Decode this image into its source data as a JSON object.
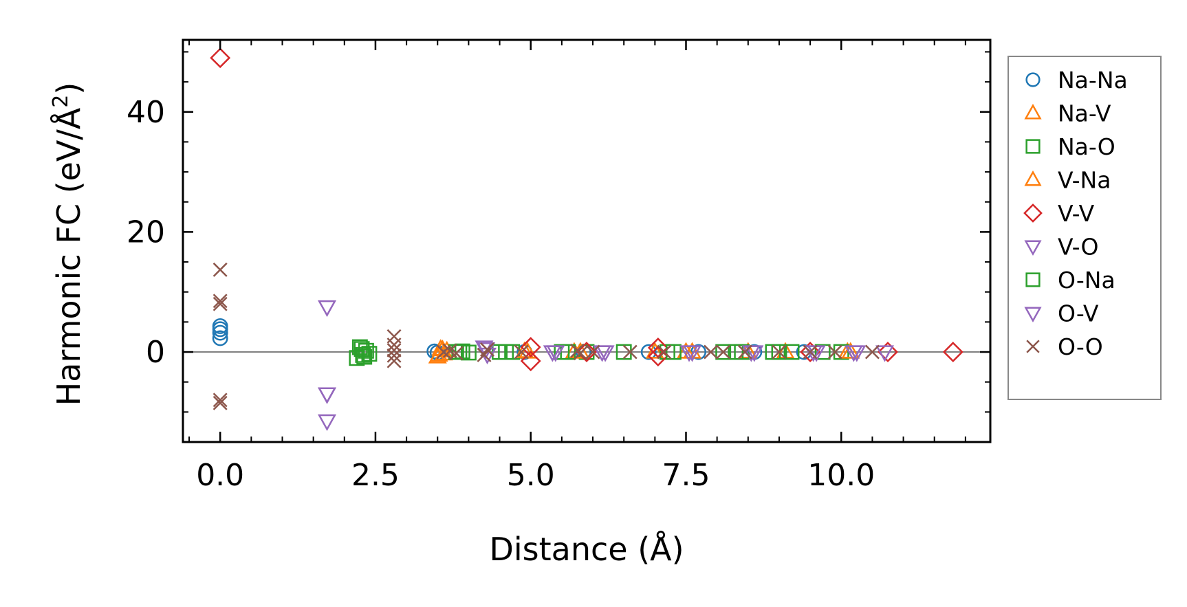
{
  "chart_data": {
    "type": "scatter",
    "title": "",
    "xlabel": "Distance (Å)",
    "ylabel_prefix": "Harmonic FC (eV/Å",
    "ylabel_sup": "2",
    "ylabel_suffix": ")",
    "xlim": [
      -0.6,
      12.4
    ],
    "ylim": [
      -15,
      52
    ],
    "xticks": [
      0.0,
      2.5,
      5.0,
      7.5,
      10.0
    ],
    "xtick_labels": [
      "0.0",
      "2.5",
      "5.0",
      "7.5",
      "10.0"
    ],
    "yticks": [
      0,
      20,
      40
    ],
    "ytick_labels": [
      "0",
      "20",
      "40"
    ],
    "x_minor_step": 0.5,
    "y_minor_step": 5,
    "reference_line_y": 0,
    "legend_position": "outside right",
    "series": [
      {
        "name": "Na-Na",
        "marker": "circle",
        "color": "#1f77b4",
        "points": [
          [
            0,
            2.3
          ],
          [
            0,
            3.2
          ],
          [
            0,
            3.8
          ],
          [
            0,
            4.3
          ],
          [
            3.45,
            0.1
          ],
          [
            3.5,
            -0.1
          ],
          [
            4.9,
            0
          ],
          [
            5.85,
            0
          ],
          [
            6.9,
            0
          ],
          [
            7.7,
            0
          ],
          [
            8.6,
            0
          ],
          [
            9.4,
            0
          ]
        ]
      },
      {
        "name": "Na-V",
        "marker": "triangle-up",
        "color": "#ff7f0e",
        "points": [
          [
            3.5,
            -0.8
          ],
          [
            3.55,
            0.5
          ],
          [
            3.6,
            -0.3
          ],
          [
            3.65,
            0.2
          ],
          [
            4.95,
            0
          ],
          [
            5.7,
            0
          ],
          [
            7.0,
            0
          ],
          [
            7.6,
            0
          ],
          [
            8.5,
            0
          ],
          [
            9.1,
            0
          ],
          [
            10.1,
            0
          ]
        ]
      },
      {
        "name": "Na-O",
        "marker": "square",
        "color": "#2ca02c",
        "points": [
          [
            2.2,
            -1.0
          ],
          [
            2.25,
            0.8
          ],
          [
            2.3,
            -0.5
          ],
          [
            2.35,
            0.2
          ],
          [
            2.4,
            -0.3
          ],
          [
            3.8,
            0
          ],
          [
            3.9,
            0.1
          ],
          [
            4.0,
            -0.1
          ],
          [
            4.5,
            0
          ],
          [
            4.7,
            0
          ],
          [
            5.5,
            0
          ],
          [
            5.9,
            0
          ],
          [
            6.5,
            0
          ],
          [
            7.2,
            0
          ],
          [
            8.1,
            0
          ],
          [
            8.4,
            0
          ],
          [
            8.9,
            0
          ],
          [
            9.2,
            0
          ],
          [
            9.7,
            0
          ],
          [
            10.0,
            0
          ]
        ]
      },
      {
        "name": "V-Na",
        "marker": "triangle-up",
        "color": "#ff7f0e",
        "points": [
          [
            3.52,
            -0.5
          ],
          [
            3.58,
            0.4
          ],
          [
            4.9,
            0.1
          ],
          [
            5.8,
            0
          ],
          [
            7.5,
            0
          ],
          [
            10.15,
            0
          ]
        ]
      },
      {
        "name": "V-V",
        "marker": "diamond",
        "color": "#d62728",
        "points": [
          [
            0,
            49
          ],
          [
            5.0,
            0.8
          ],
          [
            5.0,
            -1.5
          ],
          [
            5.9,
            0
          ],
          [
            7.05,
            0.7
          ],
          [
            7.05,
            -0.7
          ],
          [
            9.5,
            0
          ],
          [
            10.75,
            0
          ],
          [
            11.8,
            0
          ]
        ]
      },
      {
        "name": "V-O",
        "marker": "triangle-down",
        "color": "#9467bd",
        "points": [
          [
            1.72,
            7.5
          ],
          [
            1.72,
            -7
          ],
          [
            1.72,
            -11.5
          ],
          [
            4.25,
            0.8
          ],
          [
            4.3,
            -0.4
          ],
          [
            5.35,
            0
          ],
          [
            6.2,
            0
          ],
          [
            7.6,
            0
          ],
          [
            8.6,
            0
          ],
          [
            9.6,
            0
          ],
          [
            10.2,
            0
          ],
          [
            10.7,
            0
          ]
        ]
      },
      {
        "name": "O-Na",
        "marker": "square",
        "color": "#2ca02c",
        "points": [
          [
            2.28,
            0.5
          ],
          [
            2.32,
            -0.8
          ],
          [
            3.85,
            0
          ],
          [
            4.6,
            0
          ],
          [
            5.6,
            0
          ],
          [
            7.3,
            0
          ],
          [
            8.3,
            0
          ],
          [
            9.0,
            0
          ]
        ]
      },
      {
        "name": "O-V",
        "marker": "triangle-down",
        "color": "#9467bd",
        "points": [
          [
            1.72,
            -7
          ],
          [
            4.28,
            0.5
          ],
          [
            5.4,
            0
          ],
          [
            6.15,
            0
          ],
          [
            7.55,
            0
          ],
          [
            8.55,
            0
          ],
          [
            9.55,
            0
          ],
          [
            10.25,
            0
          ]
        ]
      },
      {
        "name": "O-O",
        "marker": "x",
        "color": "#8c564b",
        "points": [
          [
            0,
            13.7
          ],
          [
            0,
            8.5
          ],
          [
            0,
            8.0
          ],
          [
            0,
            -8.0
          ],
          [
            0,
            -8.5
          ],
          [
            2.8,
            2.6
          ],
          [
            2.8,
            1.2
          ],
          [
            2.8,
            0.3
          ],
          [
            2.8,
            -0.6
          ],
          [
            2.8,
            -1.5
          ],
          [
            3.6,
            0
          ],
          [
            3.7,
            0.2
          ],
          [
            3.8,
            -0.2
          ],
          [
            4.25,
            -0.5
          ],
          [
            4.3,
            0.4
          ],
          [
            4.85,
            0
          ],
          [
            5.75,
            0.2
          ],
          [
            5.8,
            -0.2
          ],
          [
            6.0,
            0
          ],
          [
            6.6,
            0
          ],
          [
            7.15,
            0
          ],
          [
            7.9,
            0
          ],
          [
            8.1,
            0
          ],
          [
            8.45,
            0
          ],
          [
            9.0,
            0
          ],
          [
            9.5,
            0
          ],
          [
            9.9,
            0
          ],
          [
            10.5,
            0
          ]
        ]
      }
    ]
  }
}
